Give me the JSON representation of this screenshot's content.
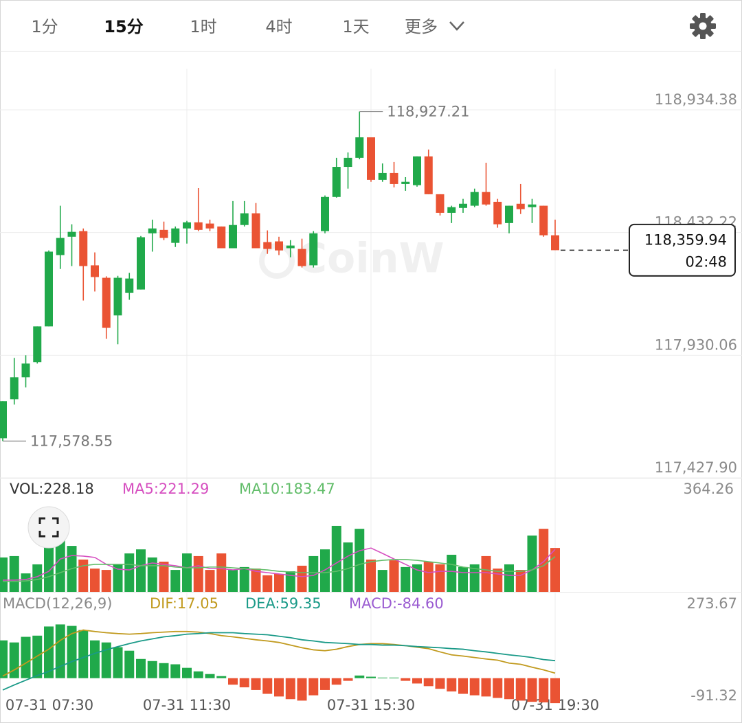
{
  "tabs": [
    "1分",
    "15分",
    "1时",
    "4时",
    "1天",
    "更多"
  ],
  "chart_data": [
    {
      "type": "candlestick",
      "watermark": "CoinW",
      "up_color": "#20a94a",
      "down_color": "#ea5333",
      "categories": [
        "07-31 07:30",
        null,
        null,
        null,
        null,
        null,
        null,
        null,
        null,
        null,
        null,
        null,
        null,
        null,
        null,
        null,
        "07-31 11:30",
        null,
        null,
        null,
        null,
        null,
        null,
        null,
        null,
        null,
        null,
        null,
        null,
        null,
        null,
        null,
        "07-31 15:30",
        null,
        null,
        null,
        null,
        null,
        null,
        null,
        null,
        null,
        null,
        null,
        null,
        null,
        null,
        null,
        "07-31 19:30"
      ],
      "open": [
        117590,
        117750,
        117840,
        117902,
        118048,
        118340,
        118415,
        118438,
        118298,
        118247,
        118093,
        118185,
        118199,
        118429,
        118443,
        118390,
        118449,
        118474,
        118469,
        118457,
        118368,
        118463,
        118511,
        118393,
        118396,
        118368,
        118365,
        118298,
        118438,
        118578,
        118701,
        118738,
        118822,
        118648,
        118676,
        118631,
        118626,
        118744,
        118589,
        118513,
        118533,
        118542,
        118598,
        118558,
        118471,
        118550,
        118536,
        118542,
        118421
      ],
      "high": [
        117742,
        117919,
        117930,
        118048,
        118359,
        118542,
        118466,
        118449,
        118351,
        118253,
        118255,
        118267,
        118418,
        118485,
        118477,
        118457,
        118480,
        118614,
        118485,
        118457,
        118561,
        118561,
        118553,
        118441,
        118415,
        118401,
        118407,
        118438,
        118584,
        118738,
        118760,
        118927.21,
        118822,
        118715,
        118721,
        118659,
        118744,
        118772,
        118589,
        118542,
        118570,
        118612,
        118718,
        118570,
        118542,
        118631,
        118570,
        118542,
        118485
      ],
      "low": [
        117578.55,
        117728,
        117798,
        117896,
        118048,
        118283,
        118295,
        118154,
        118191,
        117997,
        117975,
        118157,
        118199,
        118354,
        118401,
        118373,
        118387,
        118438,
        118438,
        118368,
        118368,
        118457,
        118368,
        118345,
        118340,
        118331,
        118289,
        118289,
        118429,
        118575,
        118612,
        118732,
        118640,
        118640,
        118617,
        118603,
        118620,
        118589,
        118502,
        118471,
        118513,
        118536,
        118542,
        118452,
        118429,
        118508,
        118471,
        118415,
        118359.94
      ],
      "close": [
        117742,
        117840,
        117896,
        118048,
        118354,
        118410,
        118435,
        118295,
        118250,
        118042,
        118247,
        118244,
        118413,
        118449,
        118410,
        118449,
        118474,
        118443,
        118449,
        118368,
        118463,
        118511,
        118368,
        118365,
        118359,
        118379,
        118295,
        118429,
        118578,
        118701,
        118738,
        118822,
        118648,
        118676,
        118631,
        118640,
        118744,
        118589,
        118513,
        118536,
        118550,
        118598,
        118547,
        118466,
        118542,
        118528,
        118547,
        118421,
        118359.94
      ],
      "annotations": [
        "118,927.21",
        "117,578.55"
      ],
      "last_price_label": "118,359.94",
      "countdown": "02:48",
      "ylim": [
        117427.9,
        118934.38
      ],
      "yticks": [
        {
          "value": 118934.38,
          "label": "118,934.38"
        },
        {
          "value": 118432.22,
          "label": "118,432.22"
        },
        {
          "value": 117930.06,
          "label": "117,930.06"
        },
        {
          "value": 117427.9,
          "label": "117,427.90"
        }
      ],
      "grid": true
    },
    {
      "type": "bar",
      "series": [
        {
          "label": "VOL:228.18",
          "color": "#333333",
          "values": [
            179,
            186,
            96,
            143,
            239,
            364.26,
            239,
            168,
            121,
            114,
            143,
            200,
            221,
            179,
            157,
            114,
            200,
            186,
            114,
            200,
            114,
            129,
            121,
            86,
            93,
            107,
            136,
            186,
            221,
            343,
            257,
            328,
            168,
            114,
            164,
            129,
            143,
            157,
            143,
            193,
            129,
            143,
            186,
            121,
            143,
            114,
            293,
            328,
            228.18
          ]
        },
        {
          "label": "MA5:221.29",
          "color": "#d64fc0",
          "values": [
            61,
            61,
            64,
            79,
            107,
            171,
            189,
            186,
            179,
            143,
            118,
            114,
            136,
            150,
            143,
            136,
            125,
            136,
            121,
            121,
            114,
            121,
            107,
            100,
            93,
            86,
            79,
            86,
            114,
            150,
            186,
            214,
            228,
            200,
            171,
            143,
            114,
            100,
            107,
            107,
            100,
            100,
            100,
            93,
            86,
            86,
            114,
            157,
            221.29
          ]
        },
        {
          "label": "MA10:183.47",
          "color": "#62bd6a",
          "values": [
            54,
            54,
            57,
            64,
            79,
            100,
            121,
            136,
            143,
            143,
            143,
            143,
            136,
            136,
            136,
            129,
            125,
            125,
            129,
            129,
            125,
            121,
            118,
            114,
            107,
            104,
            100,
            100,
            100,
            107,
            121,
            143,
            157,
            164,
            168,
            168,
            164,
            157,
            150,
            143,
            129,
            121,
            114,
            107,
            107,
            107,
            114,
            136,
            183.47
          ]
        }
      ],
      "ylim": [
        0,
        364.26
      ],
      "yticks": [
        364.26
      ]
    },
    {
      "type": "macd",
      "title": "MACD(12,26,9)",
      "series": [
        {
          "label": "DIF:17.05",
          "color": "#c19a1e",
          "values": [
            7,
            28,
            51,
            75,
            98,
            128,
            151,
            163,
            158,
            154,
            151,
            149,
            151,
            154,
            156,
            158,
            158,
            156,
            151,
            144,
            140,
            135,
            130,
            126,
            121,
            112,
            103,
            96,
            93,
            98,
            107,
            114,
            117,
            117,
            114,
            110,
            105,
            100,
            89,
            79,
            75,
            70,
            65,
            61,
            51,
            47,
            37,
            28,
            17.05
          ]
        },
        {
          "label": "DEA:59.35",
          "color": "#1a9a88",
          "values": [
            -40,
            -23,
            -7,
            9,
            23,
            40,
            56,
            70,
            84,
            96,
            107,
            117,
            126,
            133,
            140,
            144,
            149,
            151,
            154,
            154,
            154,
            151,
            149,
            147,
            142,
            137,
            130,
            126,
            121,
            119,
            117,
            114,
            114,
            112,
            112,
            110,
            107,
            105,
            103,
            100,
            98,
            93,
            89,
            84,
            79,
            75,
            70,
            63,
            59.35
          ]
        },
        {
          "label": "MACD:-84.60",
          "color": "#9a5bd1",
          "values": [
            128,
            121,
            140,
            144,
            175,
            182,
            177,
            163,
            128,
            121,
            105,
            93,
            65,
            58,
            51,
            47,
            35,
            23,
            14,
            7,
            -22,
            -31,
            -40,
            -53,
            -62,
            -71,
            -76,
            -58,
            -40,
            -22,
            -9,
            9,
            5,
            2,
            2,
            -9,
            -18,
            -27,
            -36,
            -45,
            -53,
            -58,
            -62,
            -67,
            -71,
            -76,
            -80,
            -82,
            -84.6
          ]
        }
      ],
      "ylim": [
        -91.32,
        273.67
      ],
      "yticks": [
        273.67,
        -91.32
      ]
    }
  ]
}
